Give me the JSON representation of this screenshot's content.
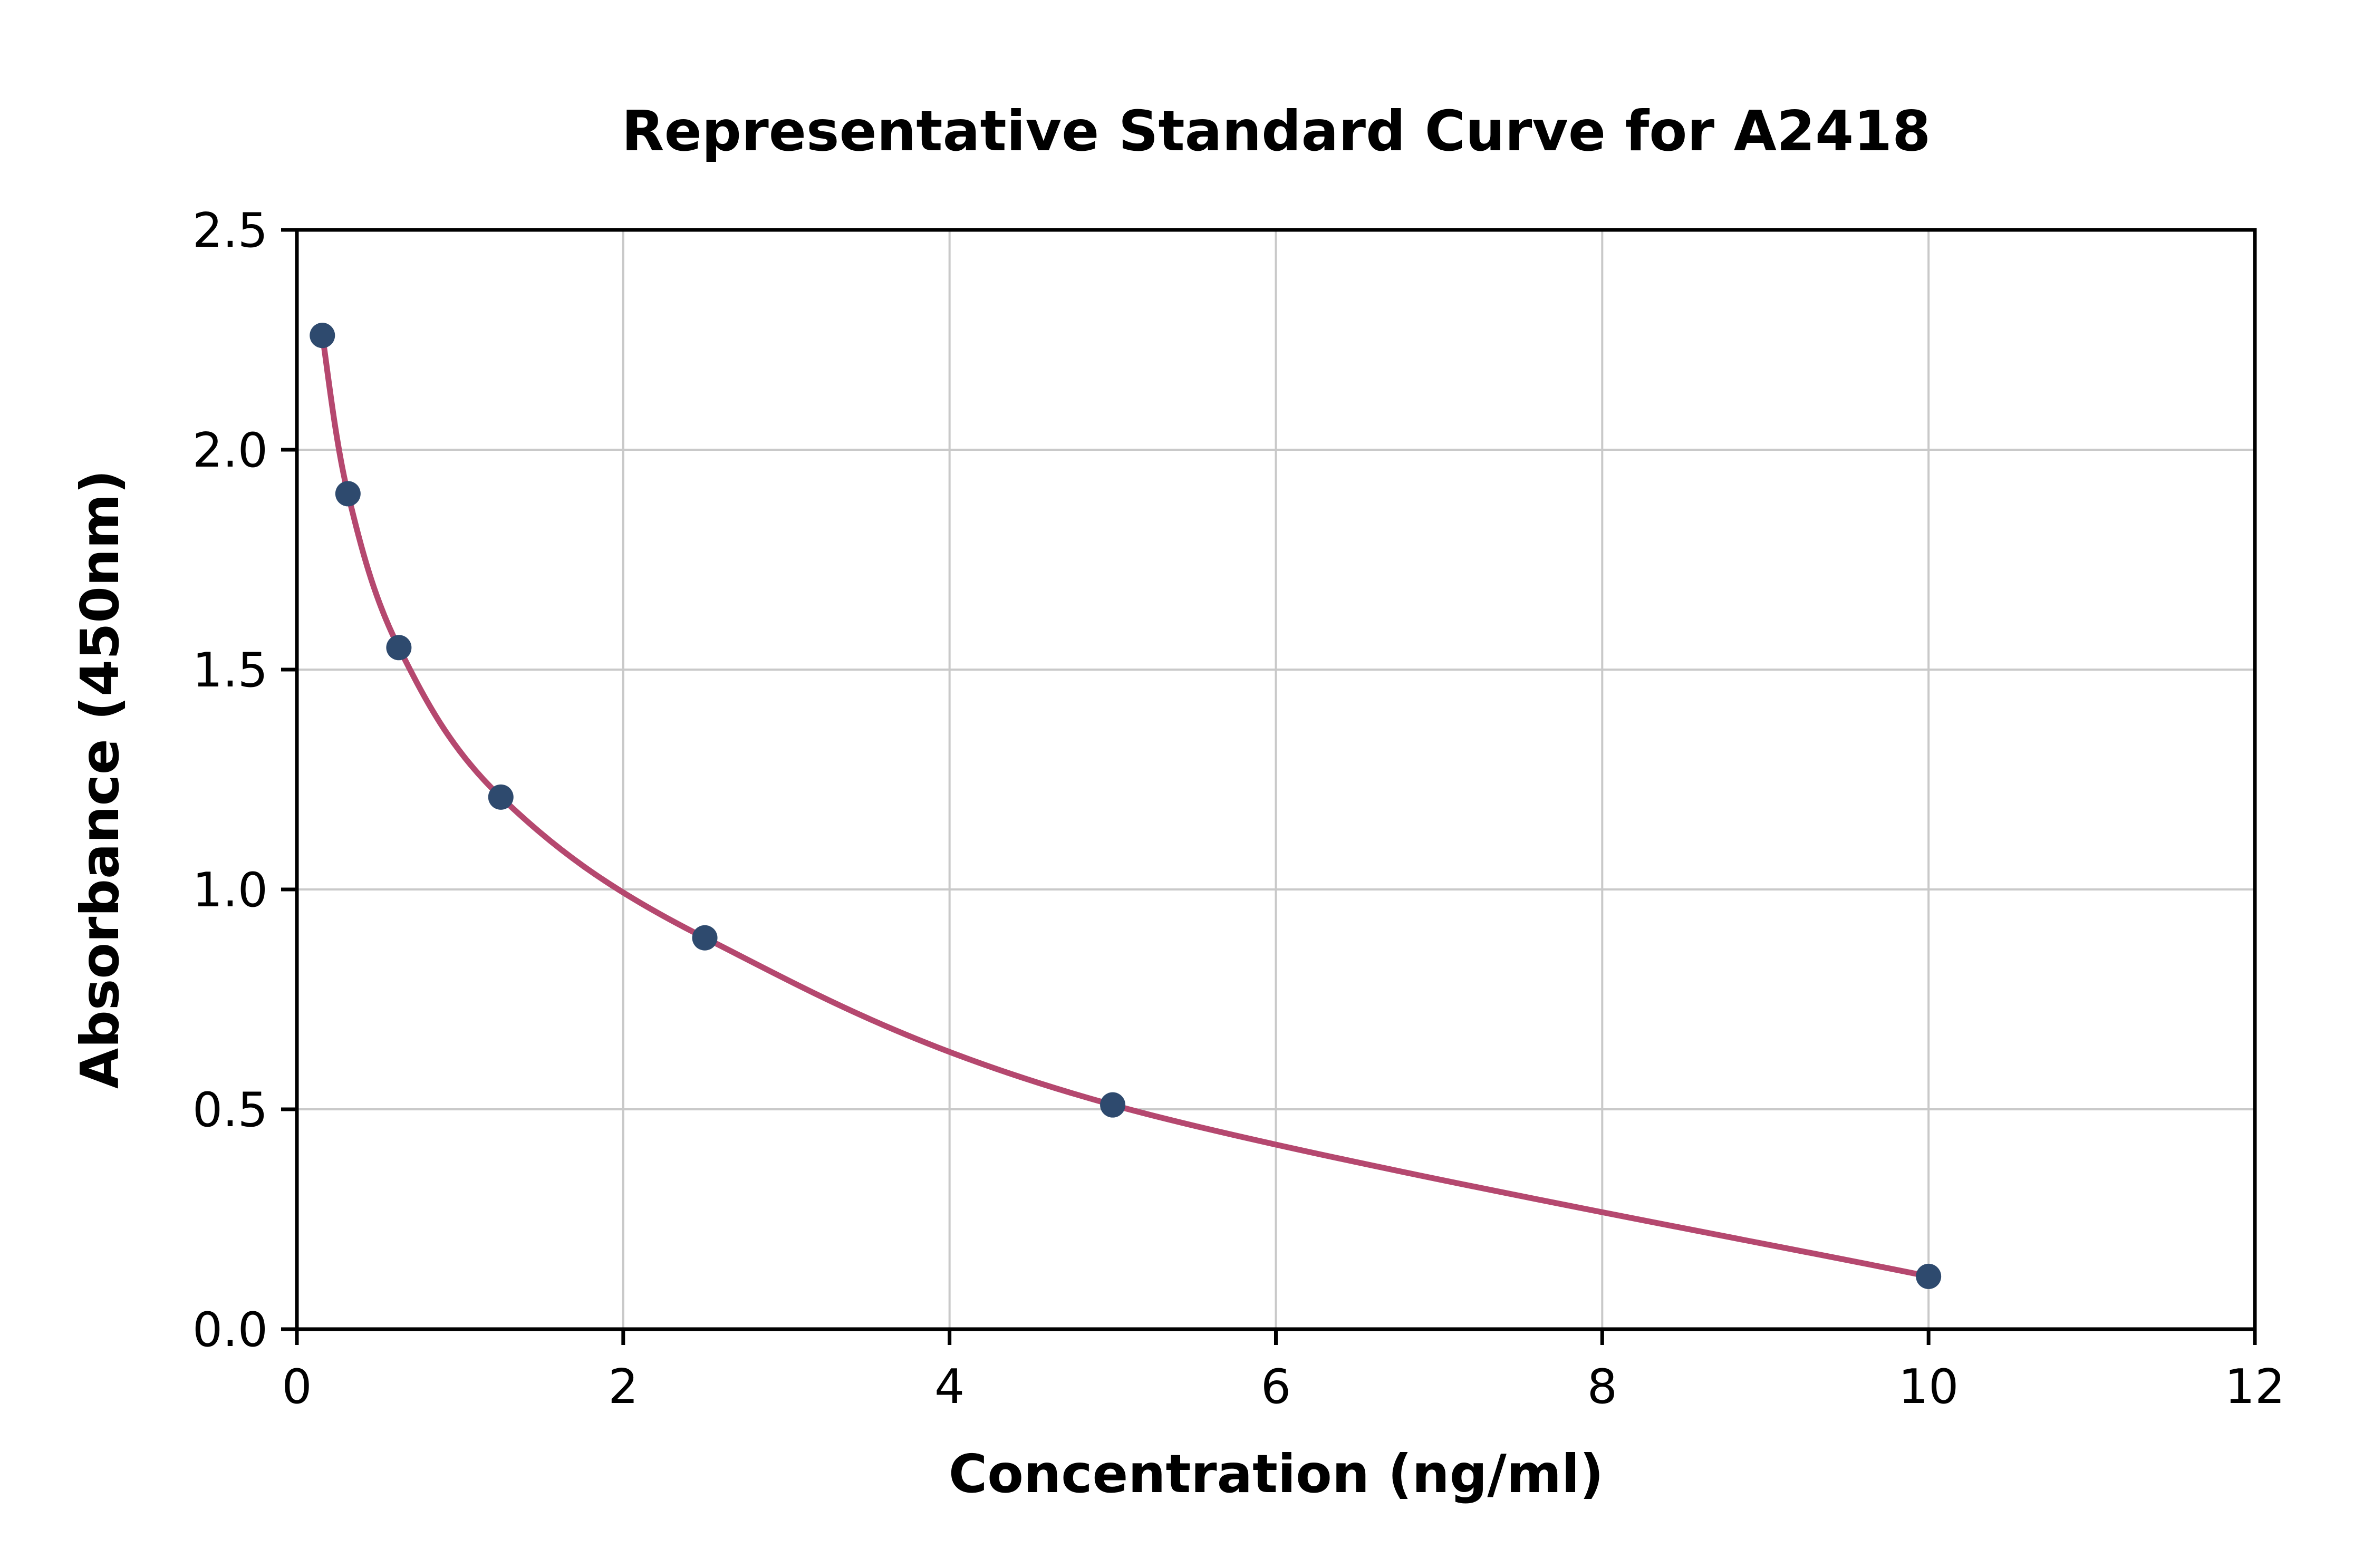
{
  "chart_data": {
    "type": "scatter",
    "title": "Representative Standard Curve for A2418",
    "xlabel": "Concentration (ng/ml)",
    "ylabel": "Absorbance (450nm)",
    "xlim": [
      0,
      12
    ],
    "ylim": [
      0,
      2.5
    ],
    "x_ticks": [
      0,
      2,
      4,
      6,
      8,
      10,
      12
    ],
    "x_tick_labels": [
      "0",
      "2",
      "4",
      "6",
      "8",
      "10",
      "12"
    ],
    "y_ticks": [
      0,
      0.5,
      1.0,
      1.5,
      2.0,
      2.5
    ],
    "y_tick_labels": [
      "0.0",
      "0.5",
      "1.0",
      "1.5",
      "2.0",
      "2.5"
    ],
    "grid": true,
    "legend_position": "none",
    "series": [
      {
        "name": "standard-points",
        "type": "scatter",
        "x": [
          0.156,
          0.313,
          0.625,
          1.25,
          2.5,
          5,
          10
        ],
        "y": [
          2.26,
          1.9,
          1.55,
          1.21,
          0.89,
          0.51,
          0.12
        ]
      },
      {
        "name": "fitted-curve",
        "type": "line",
        "through_points": true
      }
    ],
    "colors": {
      "curve": "#b5486f",
      "point": "#2e4a6e",
      "grid": "#c9c9c9",
      "axis": "#000000",
      "background": "#ffffff"
    }
  }
}
